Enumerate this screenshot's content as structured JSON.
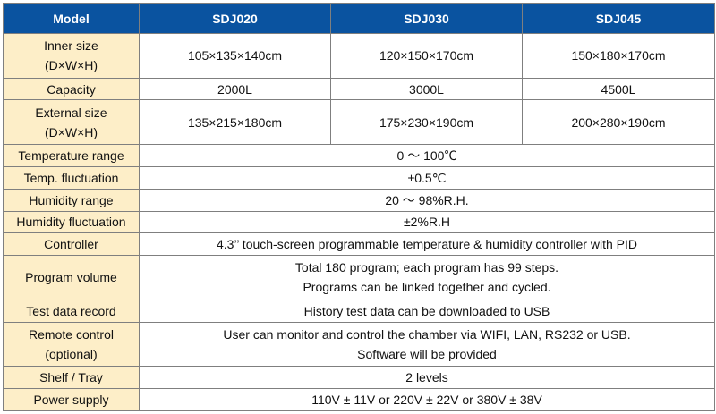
{
  "header": {
    "model": "Model",
    "models": [
      "SDJ020",
      "SDJ030",
      "SDJ045"
    ]
  },
  "rows": {
    "inner_size": {
      "label_1": "Inner size",
      "label_2": "(D×W×H)",
      "values": [
        "105×135×140cm",
        "120×150×170cm",
        "150×180×170cm"
      ]
    },
    "capacity": {
      "label": "Capacity",
      "values": [
        "2000L",
        "3000L",
        "4500L"
      ]
    },
    "external_size": {
      "label_1": "External size",
      "label_2": "(D×W×H)",
      "values": [
        "135×215×180cm",
        "175×230×190cm",
        "200×280×190cm"
      ]
    },
    "temperature_range": {
      "label": "Temperature range",
      "value": "0 ～ 100℃"
    },
    "temp_fluctuation": {
      "label": "Temp. fluctuation",
      "value": "±0.5℃"
    },
    "humidity_range": {
      "label": "Humidity range",
      "value": "20 ～ 98%R.H."
    },
    "humidity_fluctuation": {
      "label": "Humidity fluctuation",
      "value": "±2%R.H"
    },
    "controller": {
      "label": "Controller",
      "value": "4.3’’ touch-screen programmable temperature & humidity controller with PID"
    },
    "program_volume": {
      "label": "Program volume",
      "value_1": "Total 180 program; each program has 99 steps.",
      "value_2": "Programs can be linked together and cycled."
    },
    "test_data_record": {
      "label": "Test data record",
      "value": "History test data can be downloaded to USB"
    },
    "remote_control": {
      "label_1": "Remote control",
      "label_2": "(optional)",
      "value_1": "User can monitor and control the chamber via WIFI, LAN, RS232 or USB.",
      "value_2": "Software will be provided"
    },
    "shelf_tray": {
      "label": "Shelf / Tray",
      "value": "2 levels"
    },
    "power_supply": {
      "label": "Power supply",
      "value": "110V ± 11V or 220V ± 22V or 380V ± 38V"
    }
  },
  "colors": {
    "header_bg": "#0a53a0",
    "header_text": "#ffffff",
    "label_bg": "#fdeec8",
    "border": "#7f7f7f"
  }
}
